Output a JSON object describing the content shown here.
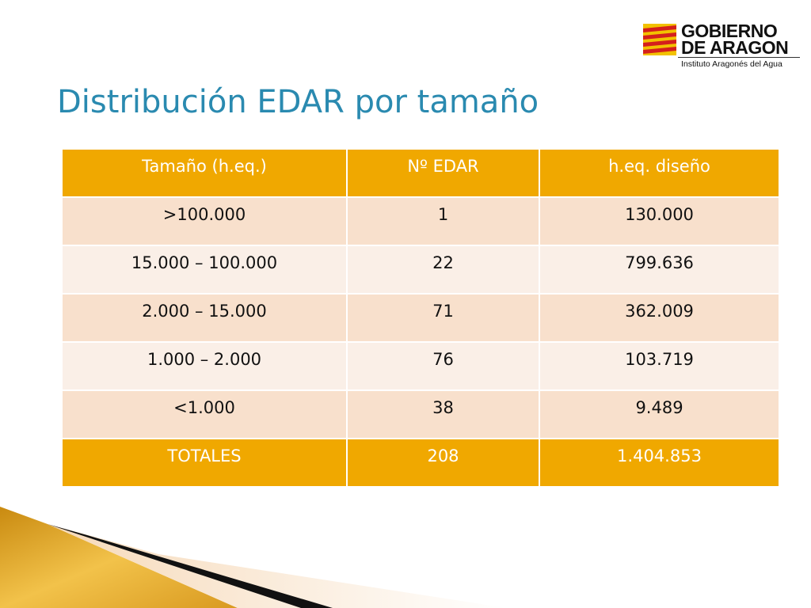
{
  "logo": {
    "line1": "GOBIERNO",
    "line2": "DE ARAGON",
    "line3": "Instituto Aragonés del Agua"
  },
  "slide_title": "Distribución EDAR por tamaño",
  "table": {
    "headers": [
      "Tamaño (h.eq.)",
      "Nº EDAR",
      "h.eq. diseño"
    ],
    "rows": [
      [
        ">100.000",
        "1",
        "130.000"
      ],
      [
        "15.000 – 100.000",
        "22",
        "799.636"
      ],
      [
        "2.000 – 15.000",
        "71",
        "362.009"
      ],
      [
        "1.000 – 2.000",
        "76",
        "103.719"
      ],
      [
        "<1.000",
        "38",
        "9.489"
      ]
    ],
    "totals": [
      "TOTALES",
      "208",
      "1.404.853"
    ]
  },
  "colors": {
    "title": "#2a8ab0",
    "header_fill": "#f0a800",
    "row_odd": "#f8e0cc",
    "row_even": "#faefe7"
  }
}
